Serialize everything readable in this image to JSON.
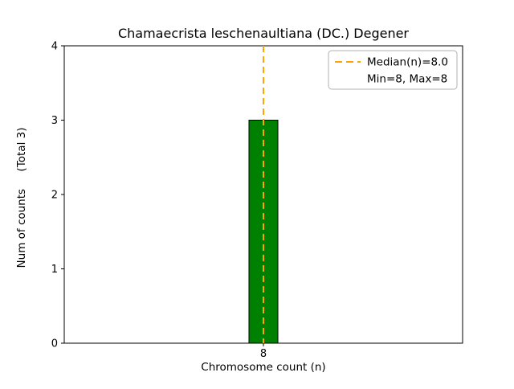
{
  "title": "Chamaecrista leschenaultiana (DC.) Degener",
  "chart_data": {
    "type": "bar",
    "title": "Chamaecrista leschenaultiana (DC.) Degener",
    "xlabel": "Chromosome count (n)",
    "ylabel": "Num of counts     (Total 3)",
    "categories": [
      "8"
    ],
    "values": [
      3
    ],
    "ylim": [
      0,
      4
    ],
    "yticks": [
      "0",
      "1",
      "2",
      "3",
      "4"
    ],
    "bar_color": "#008000",
    "bar_edge_color": "#000000",
    "grid": false,
    "median_line": {
      "at_category": "8",
      "color": "#FFA500",
      "style": "dashed"
    },
    "legend": {
      "position": "top-right",
      "entries": [
        {
          "label": "Median(n)=8.0",
          "symbol": "dashed-line",
          "color": "#FFA500"
        },
        {
          "label": "Min=8, Max=8",
          "symbol": "none",
          "color": ""
        }
      ]
    }
  }
}
